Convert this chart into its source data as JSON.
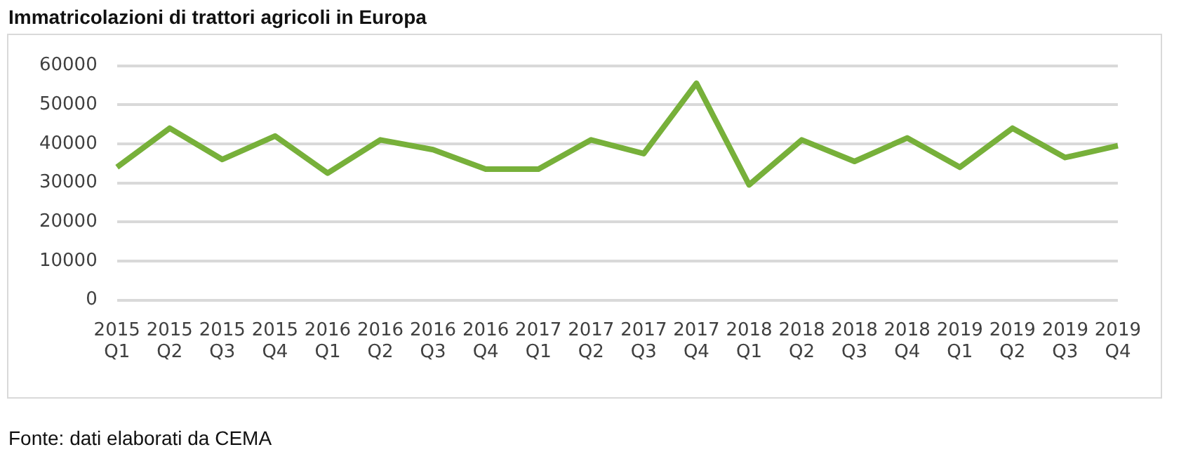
{
  "chart_data": {
    "type": "line",
    "title": "Immatricolazioni di trattori agricoli in Europa",
    "categories": [
      "2015 Q1",
      "2015 Q2",
      "2015 Q3",
      "2015 Q4",
      "2016 Q1",
      "2016 Q2",
      "2016 Q3",
      "2016 Q4",
      "2017 Q1",
      "2017 Q2",
      "2017 Q3",
      "2017 Q4",
      "2018 Q1",
      "2018 Q2",
      "2018 Q3",
      "2018 Q4",
      "2019 Q1",
      "2019 Q2",
      "2019 Q3",
      "2019 Q4"
    ],
    "series": [
      {
        "color": "#77b03a",
        "values": [
          34000,
          44000,
          36000,
          42000,
          32500,
          41000,
          38500,
          33500,
          33500,
          41000,
          37500,
          55500,
          29500,
          41000,
          35500,
          41500,
          34000,
          44000,
          36500,
          39500
        ]
      }
    ],
    "ylim": [
      0,
      60000
    ],
    "yticks": [
      0,
      10000,
      20000,
      30000,
      40000,
      50000,
      60000
    ],
    "grid": "y",
    "legend": false,
    "marker": "none",
    "line_style": "solid",
    "annotations": [
      "Fonte: dati elaborati da CEMA"
    ]
  }
}
